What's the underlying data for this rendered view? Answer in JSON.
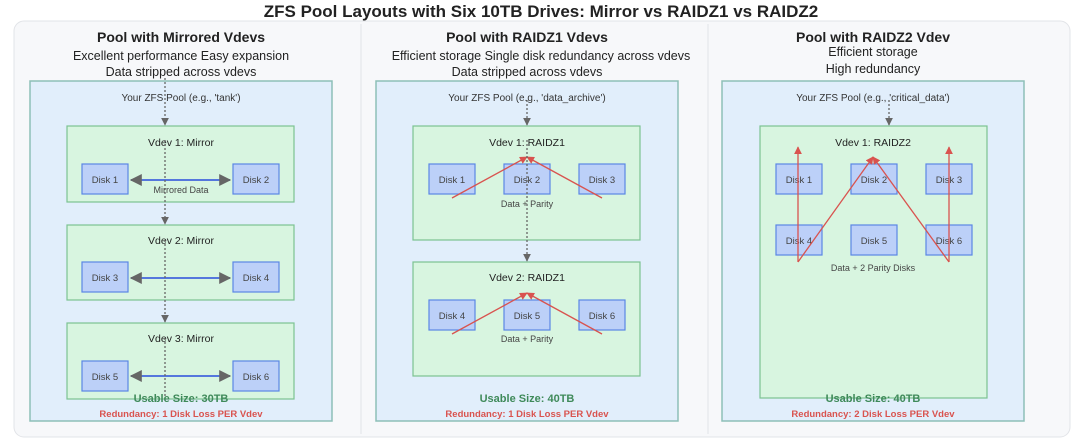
{
  "title": "ZFS Pool Layouts with Six 10TB Drives: Mirror vs RAIDZ1 vs RAIDZ2",
  "colors": {
    "pool_bg": "#e1eefb",
    "vdev_bg": "#d8f5e0",
    "disk_bg": "#bcd0f8",
    "usable": "#3f8a5a",
    "redundancy": "#d9534f",
    "parity_arrow": "#d9534f",
    "mirror_arrow": "#5577dd"
  },
  "mirror": {
    "heading": "Pool with Mirrored Vdevs",
    "sub1": "Excellent performance Easy expansion",
    "sub2": "Data stripped across vdevs",
    "pool_label": "Your ZFS Pool (e.g., 'tank')",
    "vdevs": [
      {
        "label": "Vdev 1: Mirror",
        "disks": [
          "Disk 1",
          "Disk 2"
        ],
        "note": "Mirrored Data"
      },
      {
        "label": "Vdev 2: Mirror",
        "disks": [
          "Disk 3",
          "Disk 4"
        ]
      },
      {
        "label": "Vdev 3: Mirror",
        "disks": [
          "Disk 5",
          "Disk 6"
        ]
      }
    ],
    "usable": "Usable Size: 30TB",
    "redundancy": "Redundancy: 1 Disk Loss PER Vdev"
  },
  "raidz1": {
    "heading": "Pool with RAIDZ1 Vdevs",
    "sub1": "Efficient storage  Single disk redundancy across vdevs",
    "sub2": "Data stripped across vdevs",
    "pool_label": "Your ZFS Pool (e.g., 'data_archive')",
    "vdevs": [
      {
        "label": "Vdev 1: RAIDZ1",
        "disks": [
          "Disk 1",
          "Disk 2",
          "Disk 3"
        ],
        "note": "Data + Parity"
      },
      {
        "label": "Vdev 2: RAIDZ1",
        "disks": [
          "Disk 4",
          "Disk 5",
          "Disk 6"
        ],
        "note": "Data + Parity"
      }
    ],
    "usable": "Usable Size: 40TB",
    "redundancy": "Redundancy: 1 Disk Loss PER Vdev"
  },
  "raidz2": {
    "heading": "Pool with RAIDZ2 Vdev",
    "sub1": "Efficient storage",
    "sub2": "High redundancy",
    "pool_label": "Your ZFS Pool (e.g., 'critical_data')",
    "vdevs": [
      {
        "label": "Vdev 1: RAIDZ2",
        "disks": [
          "Disk 1",
          "Disk 2",
          "Disk 3",
          "Disk 4",
          "Disk 5",
          "Disk 6"
        ],
        "note": "Data + 2 Parity Disks"
      }
    ],
    "usable": "Usable Size: 40TB",
    "redundancy": "Redundancy: 2 Disk Loss PER Vdev"
  }
}
